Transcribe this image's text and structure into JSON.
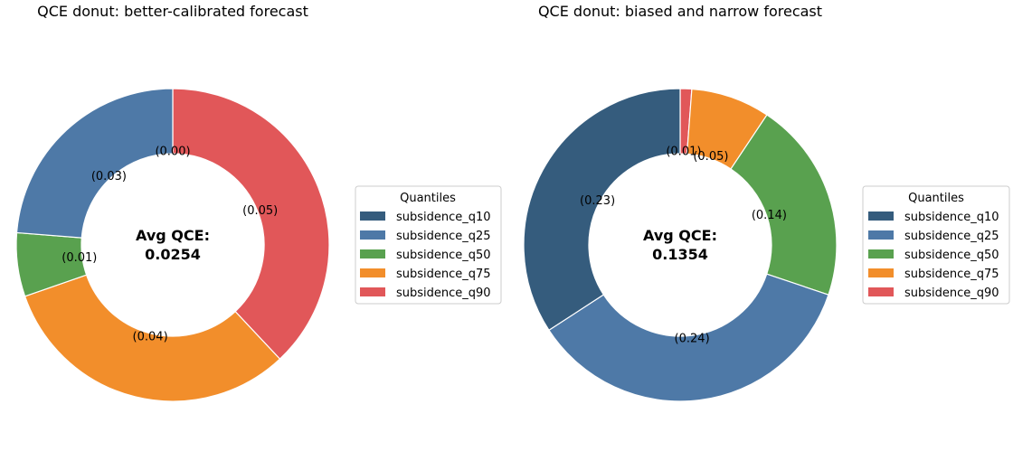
{
  "chart_data": [
    {
      "type": "pie",
      "title": "QCE donut: better-calibrated forecast",
      "legend_title": "Quantiles",
      "legend_position": "right",
      "categories": [
        "subsidence_q10",
        "subsidence_q25",
        "subsidence_q50",
        "subsidence_q75",
        "subsidence_q90"
      ],
      "values": [
        0.0,
        0.03,
        0.0083,
        0.04,
        0.048
      ],
      "data_labels": [
        "(0.00)",
        "(0.03)",
        "(0.01)",
        "(0.04)",
        "(0.05)"
      ],
      "colors": [
        "#355c7d",
        "#4e79a7",
        "#59a14f",
        "#f28e2b",
        "#e15759"
      ],
      "center_label": [
        "Avg QCE:",
        "0.0254"
      ]
    },
    {
      "type": "pie",
      "title": "QCE donut: biased and narrow forecast",
      "legend_title": "Quantiles",
      "legend_position": "right",
      "categories": [
        "subsidence_q10",
        "subsidence_q25",
        "subsidence_q50",
        "subsidence_q75",
        "subsidence_q90"
      ],
      "values": [
        0.23,
        0.24,
        0.14,
        0.055,
        0.008
      ],
      "data_labels": [
        "(0.23)",
        "(0.24)",
        "(0.14)",
        "(0.05)",
        "(0.01)"
      ],
      "colors": [
        "#355c7d",
        "#4e79a7",
        "#59a14f",
        "#f28e2b",
        "#e15759"
      ],
      "center_label": [
        "Avg QCE:",
        "0.1354"
      ]
    }
  ]
}
